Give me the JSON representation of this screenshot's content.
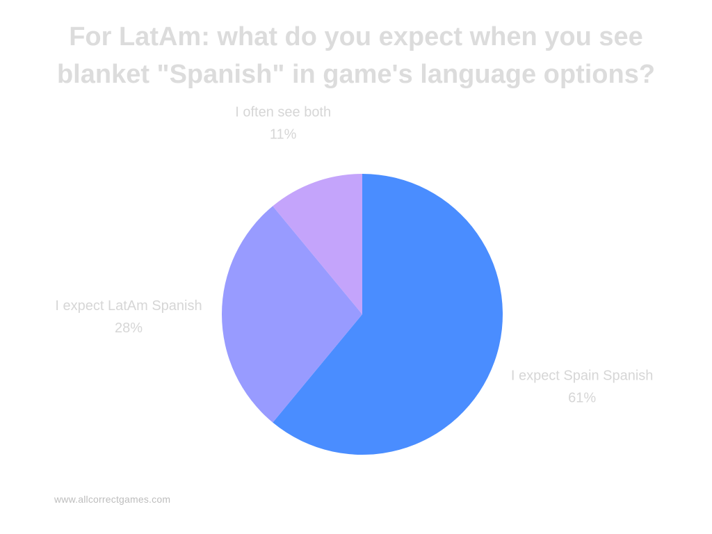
{
  "chart_data": {
    "type": "pie",
    "title_lines": [
      "For LatAm: what do you expect when you see",
      "blanket \"Spanish\" in game's language options?"
    ],
    "start_angle_deg": 0,
    "direction": "clockwise",
    "slices": [
      {
        "label": "I expect Spain Spanish",
        "value": 61,
        "value_label": "61%",
        "color": "#4a8dff"
      },
      {
        "label": "I expect LatAm Spanish",
        "value": 28,
        "value_label": "28%",
        "color": "#989bff"
      },
      {
        "label": "I often see both",
        "value": 11,
        "value_label": "11%",
        "color": "#c4a4fb"
      }
    ]
  },
  "footer": {
    "url": "www.allcorrectgames.com"
  }
}
